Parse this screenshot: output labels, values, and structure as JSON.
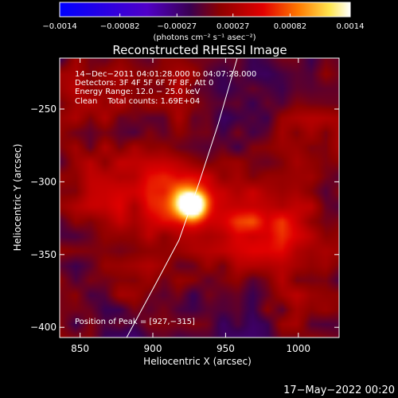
{
  "chart_data": {
    "type": "heatmap",
    "title": "Reconstructed RHESSI Image",
    "xlabel": "Heliocentric X (arcsec)",
    "ylabel": "Heliocentric Y (arcsec)",
    "xlim": [
      836,
      1028
    ],
    "ylim": [
      -407,
      -215
    ],
    "x_ticks": [
      850,
      900,
      950,
      1000
    ],
    "y_ticks": [
      -250,
      -300,
      -350,
      -400
    ],
    "x_tick_labels": [
      "850",
      "900",
      "950",
      "1000"
    ],
    "y_tick_labels": [
      "−250",
      "−300",
      "−350",
      "−400"
    ],
    "colorbar": {
      "range": [
        -0.0014,
        0.0014
      ],
      "ticks": [
        -0.0014,
        -0.00082,
        -0.00027,
        0.00027,
        0.00082,
        0.0014
      ],
      "tick_labels": [
        "−0.0014",
        "−0.00082",
        "−0.00027",
        "0.00027",
        "0.00082",
        "0.0014"
      ],
      "units_label": "(photons cm⁻² s⁻¹ asec⁻²)",
      "colors": [
        "#0000ff",
        "#4b00c8",
        "#8c0000",
        "#e10000",
        "#ff6e00",
        "#ffd23c",
        "#ffffff"
      ]
    },
    "annotations": [
      "14−Dec−2011 04:01:28.000 to 04:07:28.000",
      "Detectors: 3F 4F 5F 6F 7F 8F, Att 0",
      "Energy Range: 12.0 − 25.0 keV",
      "Clean    Total counts: 1.69E+04"
    ],
    "peak_label": "Position of Peak = [927,−315]",
    "peak": [
      927,
      -315
    ],
    "limb_curve": [
      [
        882,
        -407
      ],
      [
        902,
        -370
      ],
      [
        918,
        -340
      ],
      [
        932,
        -300
      ],
      [
        945,
        -260
      ],
      [
        958,
        -215
      ]
    ],
    "sources": [
      {
        "x": 927,
        "y": -315,
        "amp": 1.0,
        "sigma": 7
      },
      {
        "x": 915,
        "y": -312,
        "amp": 0.45,
        "sigma": 18
      },
      {
        "x": 955,
        "y": -328,
        "amp": 0.35,
        "sigma": 22
      },
      {
        "x": 990,
        "y": -330,
        "amp": 0.3,
        "sigma": 20
      },
      {
        "x": 870,
        "y": -305,
        "amp": 0.3,
        "sigma": 20
      },
      {
        "x": 860,
        "y": -240,
        "amp": 0.22,
        "sigma": 18
      },
      {
        "x": 920,
        "y": -240,
        "amp": 0.18,
        "sigma": 16
      },
      {
        "x": 1010,
        "y": -270,
        "amp": 0.2,
        "sigma": 18
      },
      {
        "x": 1000,
        "y": -380,
        "amp": 0.15,
        "sigma": 18
      },
      {
        "x": 890,
        "y": -370,
        "amp": 0.15,
        "sigma": 16
      }
    ],
    "sinks": [
      {
        "x": 955,
        "y": -240,
        "amp": 0.12,
        "sigma": 20
      },
      {
        "x": 960,
        "y": -390,
        "amp": 0.1,
        "sigma": 20
      },
      {
        "x": 880,
        "y": -405,
        "amp": 0.1,
        "sigma": 15
      },
      {
        "x": 1005,
        "y": -295,
        "amp": 0.06,
        "sigma": 12
      }
    ]
  },
  "footer": {
    "date": "17−May−2022 00:20"
  }
}
